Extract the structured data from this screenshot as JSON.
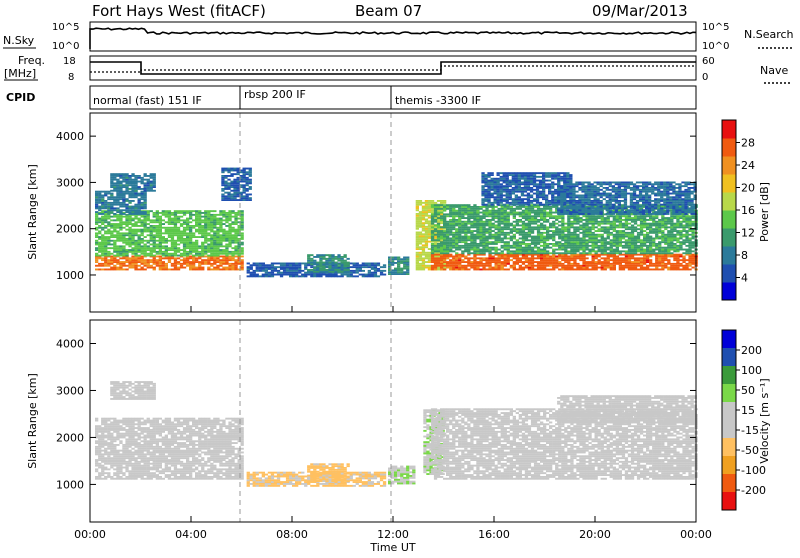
{
  "header": {
    "station": "Fort Hays West (fitACF)",
    "beam": "Beam 07",
    "date": "09/Mar/2013"
  },
  "top_panels": {
    "nsky_label": "N.Sky",
    "nsearch_label": "N.Search",
    "noise_ticks_left": [
      "10^5",
      "10^0"
    ],
    "noise_ticks_right": [
      "10^5",
      "10^0"
    ],
    "freq_label_1": "Freq.",
    "freq_label_2": "[MHz]",
    "freq_ticks": [
      "18",
      "8"
    ],
    "nave_label": "Nave",
    "nave_ticks": [
      "60",
      "0"
    ],
    "cpid_label": "CPID",
    "cpid_segments": [
      {
        "label": "normal (fast) 151 IF",
        "start_hour": 0
      },
      {
        "label": "rbsp 200 IF",
        "start_hour": 5.9
      },
      {
        "label": "themis -3300 IF",
        "start_hour": 12.0
      }
    ]
  },
  "colors": {
    "power": [
      "#0000d8",
      "#1f4fb0",
      "#2b7a9a",
      "#3a9a6c",
      "#5cc84a",
      "#b8d84a",
      "#f0c020",
      "#f09020",
      "#f05a10",
      "#e81010"
    ],
    "velocity": [
      "#e81010",
      "#f05a10",
      "#f0a020",
      "#ffc060",
      "#c8c8c8",
      "#c8c8c8",
      "#7ad848",
      "#3a9a3a",
      "#1f4fb0",
      "#0000d8"
    ]
  },
  "chart_data": [
    {
      "type": "heatmap",
      "name": "power",
      "ylabel": "Slant Range [km]",
      "yticks": [
        "1000",
        "2000",
        "3000",
        "4000"
      ],
      "ylim": [
        200,
        4500
      ],
      "xlim": [
        0,
        24
      ],
      "colorbar": {
        "label": "Power [dB]",
        "ticks": [
          "4",
          "8",
          "12",
          "16",
          "20",
          "24",
          "28"
        ],
        "range": [
          0,
          32
        ]
      },
      "regions": [
        {
          "t0": 0.2,
          "t1": 6.0,
          "r0": 1100,
          "r1": 1400,
          "v": 26
        },
        {
          "t0": 0.2,
          "t1": 6.0,
          "r0": 1400,
          "r1": 2400,
          "v": 14
        },
        {
          "t0": 0.2,
          "t1": 2.2,
          "r0": 2300,
          "r1": 2800,
          "v": 8
        },
        {
          "t0": 0.8,
          "t1": 2.6,
          "r0": 2800,
          "r1": 3200,
          "v": 8
        },
        {
          "t0": 5.2,
          "t1": 6.3,
          "r0": 2600,
          "r1": 3300,
          "v": 6
        },
        {
          "t0": 6.2,
          "t1": 11.6,
          "r0": 950,
          "r1": 1250,
          "v": 6
        },
        {
          "t0": 8.6,
          "t1": 10.2,
          "r0": 1050,
          "r1": 1450,
          "v": 10
        },
        {
          "t0": 11.8,
          "t1": 12.6,
          "r0": 1000,
          "r1": 1400,
          "v": 10
        },
        {
          "t0": 12.9,
          "t1": 14.0,
          "r0": 1100,
          "r1": 2600,
          "v": 18
        },
        {
          "t0": 13.5,
          "t1": 24.0,
          "r0": 1100,
          "r1": 1450,
          "v": 27
        },
        {
          "t0": 13.5,
          "t1": 24.0,
          "r0": 1450,
          "r1": 2500,
          "v": 12
        },
        {
          "t0": 15.5,
          "t1": 19.0,
          "r0": 2500,
          "r1": 3200,
          "v": 6
        },
        {
          "t0": 18.5,
          "t1": 24.0,
          "r0": 2300,
          "r1": 3000,
          "v": 7
        }
      ]
    },
    {
      "type": "heatmap",
      "name": "velocity",
      "xlabel": "Time UT",
      "ylabel": "Slant Range [km]",
      "yticks": [
        "1000",
        "2000",
        "3000",
        "4000"
      ],
      "ylim": [
        200,
        4500
      ],
      "xticks": [
        "00:00",
        "04:00",
        "08:00",
        "12:00",
        "16:00",
        "20:00",
        "00:00"
      ],
      "xlim": [
        0,
        24
      ],
      "colorbar": {
        "label": "Velocity [m s⁻¹]",
        "ticks": [
          "200",
          "100",
          "50",
          "15",
          "-15",
          "-50",
          "-100",
          "-200"
        ],
        "range": [
          -250,
          250
        ]
      },
      "regions": [
        {
          "t0": 0.2,
          "t1": 6.0,
          "r0": 1100,
          "r1": 2400,
          "v": 0
        },
        {
          "t0": 0.8,
          "t1": 2.6,
          "r0": 2800,
          "r1": 3200,
          "v": 0
        },
        {
          "t0": 6.2,
          "t1": 11.6,
          "r0": 950,
          "r1": 1250,
          "v": -60
        },
        {
          "t0": 8.6,
          "t1": 10.2,
          "r0": 1050,
          "r1": 1450,
          "v": -70
        },
        {
          "t0": 11.8,
          "t1": 12.8,
          "r0": 1000,
          "r1": 1400,
          "v": 40
        },
        {
          "t0": 13.2,
          "t1": 14.0,
          "r0": 1200,
          "r1": 2600,
          "v": 45
        },
        {
          "t0": 13.5,
          "t1": 24.0,
          "r0": 1100,
          "r1": 2600,
          "v": 0
        },
        {
          "t0": 18.5,
          "t1": 24.0,
          "r0": 2300,
          "r1": 2900,
          "v": 0
        }
      ]
    }
  ]
}
